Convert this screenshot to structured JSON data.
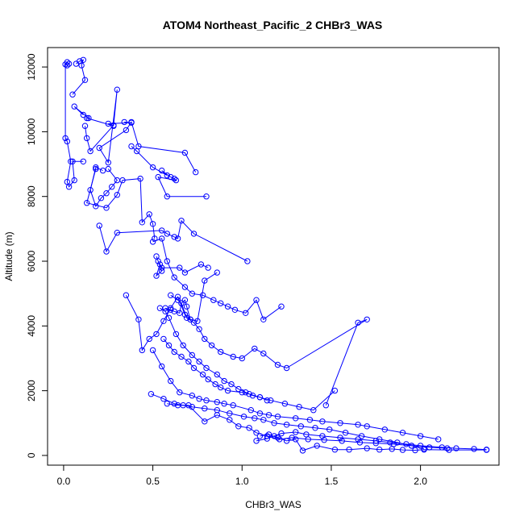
{
  "chart_data": {
    "type": "line",
    "title": "ATOM4 Northeast_Pacific_2 CHBr3_WAS",
    "xlabel": "CHBr3_WAS",
    "ylabel": "Altitude (m)",
    "xlim": [
      -0.09,
      2.44
    ],
    "ylim": [
      -300,
      12600
    ],
    "x_ticks": [
      0.0,
      0.5,
      1.0,
      1.5,
      2.0
    ],
    "x_tick_labels": [
      "0.0",
      "0.5",
      "1.0",
      "1.5",
      "2.0"
    ],
    "y_ticks": [
      0,
      2000,
      4000,
      6000,
      8000,
      10000,
      12000
    ],
    "y_tick_labels": [
      "0",
      "2000",
      "4000",
      "6000",
      "8000",
      "10000",
      "12000"
    ],
    "grid": false,
    "series_color": "#0000ff",
    "marker": "open-circle",
    "series": [
      {
        "x": [
          0.02,
          0.03,
          0.02,
          0.01,
          0.01,
          0.02,
          0.04,
          0.02,
          0.03,
          0.06,
          0.05,
          0.11
        ],
        "y": [
          12050,
          12100,
          12150,
          12080,
          9800,
          9700,
          9080,
          8450,
          8300,
          8500,
          9080,
          9080
        ]
      },
      {
        "x": [
          0.07,
          0.09,
          0.11,
          0.1,
          0.12,
          0.05
        ],
        "y": [
          12100,
          12180,
          12220,
          12050,
          11600,
          11150
        ]
      },
      {
        "x": [
          0.11,
          0.06,
          0.14,
          0.13,
          0.28,
          0.25,
          0.38,
          0.34
        ],
        "y": [
          10520,
          10780,
          10420,
          10420,
          10180,
          10250,
          10280,
          10300
        ]
      },
      {
        "x": [
          0.12,
          0.13,
          0.15,
          0.28,
          0.3,
          0.25,
          0.2,
          0.35,
          0.38,
          0.42,
          0.68,
          0.74
        ],
        "y": [
          10180,
          9800,
          9400,
          10200,
          11300,
          9050,
          9500,
          10050,
          10300,
          9550,
          9350,
          8750
        ]
      },
      {
        "x": [
          0.38,
          0.41,
          0.5,
          0.58,
          0.55,
          0.6,
          0.62,
          0.63,
          0.53,
          0.58,
          0.8
        ],
        "y": [
          9550,
          9400,
          8900,
          8650,
          8800,
          8600,
          8550,
          8500,
          8600,
          8000,
          8000
        ]
      },
      {
        "x": [
          0.22,
          0.18,
          0.15,
          0.18,
          0.21,
          0.24,
          0.27,
          0.3,
          0.25
        ],
        "y": [
          8800,
          8900,
          8200,
          7700,
          7950,
          8100,
          8300,
          8500,
          8850
        ]
      },
      {
        "x": [
          0.18,
          0.13,
          0.24,
          0.3,
          0.33,
          0.43,
          0.44,
          0.48,
          0.5,
          0.51
        ],
        "y": [
          8850,
          7800,
          7650,
          8050,
          8500,
          8550,
          7200,
          7450,
          7150,
          6700
        ]
      },
      {
        "x": [
          0.2,
          0.24,
          0.3,
          0.55,
          0.58,
          0.62,
          0.64,
          0.66,
          0.73,
          1.03
        ],
        "y": [
          7100,
          6300,
          6880,
          6950,
          6850,
          6750,
          6700,
          7250,
          6850,
          6000
        ]
      },
      {
        "x": [
          0.52,
          0.53,
          0.55,
          0.52,
          0.54,
          0.55,
          0.65,
          0.68,
          0.77,
          0.81
        ],
        "y": [
          6150,
          6000,
          5700,
          5550,
          5900,
          5800,
          5800,
          5650,
          5900,
          5800
        ]
      },
      {
        "x": [
          0.35,
          0.42,
          0.44,
          0.48,
          0.52,
          0.56,
          0.6,
          0.64,
          0.68,
          0.71
        ],
        "y": [
          4950,
          4200,
          3250,
          3600,
          3750,
          4150,
          4550,
          4900,
          4350,
          4200
        ]
      },
      {
        "x": [
          0.57,
          0.6,
          0.62,
          0.65,
          0.66,
          0.68,
          0.69,
          0.71,
          0.75,
          0.79,
          0.86
        ],
        "y": [
          4550,
          4500,
          4450,
          4400,
          4700,
          4800,
          4600,
          4200,
          4150,
          5400,
          5650
        ]
      },
      {
        "x": [
          0.5,
          0.55,
          0.58,
          0.62,
          0.68,
          0.72,
          0.78,
          0.84,
          0.88,
          0.92,
          0.96,
          1.02,
          1.08,
          1.12,
          1.22
        ],
        "y": [
          6600,
          6700,
          6000,
          5500,
          5200,
          5000,
          4950,
          4800,
          4700,
          4600,
          4500,
          4400,
          4800,
          4200,
          4600
        ]
      },
      {
        "x": [
          0.6,
          0.64,
          0.66,
          0.69,
          0.73,
          0.76,
          0.79,
          0.83,
          0.88,
          0.95,
          1.0,
          1.07,
          1.12,
          1.2,
          1.25,
          1.7,
          1.65,
          1.47
        ],
        "y": [
          4950,
          4800,
          4700,
          4250,
          4100,
          3900,
          3600,
          3400,
          3200,
          3050,
          3000,
          3300,
          3150,
          2800,
          2700,
          4200,
          4100,
          1550
        ]
      },
      {
        "x": [
          0.54,
          0.57,
          0.59,
          0.63,
          0.67,
          0.72,
          0.76,
          0.8,
          0.86,
          0.9,
          0.94,
          0.98,
          1.02,
          1.06,
          1.1,
          1.14
        ],
        "y": [
          4550,
          4450,
          4250,
          3750,
          3400,
          3100,
          2900,
          2700,
          2500,
          2300,
          2200,
          2050,
          1950,
          1850,
          1800,
          1700
        ]
      },
      {
        "x": [
          0.56,
          0.59,
          0.62,
          0.66,
          0.7,
          0.73,
          0.78,
          0.81,
          0.85,
          0.88,
          0.92,
          1.0,
          1.04,
          1.1,
          1.16,
          1.24,
          1.32,
          1.4,
          1.52
        ],
        "y": [
          3600,
          3400,
          3200,
          3050,
          2900,
          2700,
          2500,
          2350,
          2200,
          2100,
          2000,
          1950,
          1900,
          1800,
          1700,
          1600,
          1500,
          1400,
          2000
        ]
      },
      {
        "x": [
          0.5,
          0.55,
          0.6,
          0.65,
          0.72,
          0.76,
          0.8,
          0.86,
          0.9,
          0.95,
          1.05,
          1.1,
          1.15,
          1.2,
          1.3,
          1.38,
          1.45,
          1.55,
          1.65,
          1.7,
          1.8,
          1.9,
          2.0,
          2.1
        ],
        "y": [
          3250,
          2750,
          2300,
          1950,
          1850,
          1750,
          1700,
          1650,
          1600,
          1550,
          1400,
          1300,
          1250,
          1200,
          1150,
          1100,
          1050,
          1000,
          950,
          900,
          800,
          700,
          600,
          500
        ]
      },
      {
        "x": [
          0.49,
          0.56,
          0.62,
          0.67,
          0.72,
          0.79,
          0.86,
          0.93,
          1.01,
          1.07,
          1.12,
          1.18,
          1.25,
          1.33,
          1.41,
          1.49,
          1.58,
          1.67,
          1.77,
          1.87,
          1.95,
          2.02
        ],
        "y": [
          1900,
          1750,
          1600,
          1550,
          1500,
          1450,
          1400,
          1300,
          1200,
          1150,
          1100,
          1000,
          950,
          900,
          850,
          800,
          700,
          600,
          500,
          400,
          300,
          200
        ]
      },
      {
        "x": [
          0.58,
          0.64,
          0.7,
          0.79,
          0.86,
          0.93,
          0.98,
          1.04,
          1.08,
          1.14,
          1.21,
          1.28,
          1.37,
          1.46,
          1.56,
          1.66,
          1.75,
          1.85,
          1.95,
          2.05,
          2.15
        ],
        "y": [
          1600,
          1550,
          1550,
          1050,
          1250,
          1100,
          900,
          850,
          700,
          600,
          500,
          550,
          500,
          480,
          450,
          400,
          380,
          350,
          300,
          250,
          220
        ]
      },
      {
        "x": [
          1.08,
          1.14,
          1.18,
          1.22,
          1.3,
          1.36,
          1.45,
          1.55,
          1.65,
          1.75,
          1.83,
          1.92,
          2.0,
          2.12,
          2.2,
          2.3,
          2.37
        ],
        "y": [
          450,
          520,
          600,
          680,
          720,
          650,
          600,
          550,
          500,
          450,
          400,
          350,
          300,
          250,
          220,
          200,
          180
        ]
      },
      {
        "x": [
          1.1,
          1.15,
          1.2,
          1.25,
          1.3,
          1.34,
          1.42,
          1.52,
          1.6,
          1.7,
          1.77,
          1.84,
          1.9,
          1.97,
          2.02,
          2.16,
          2.37
        ],
        "y": [
          600,
          650,
          550,
          450,
          500,
          150,
          300,
          180,
          180,
          220,
          180,
          200,
          170,
          160,
          180,
          170,
          170
        ]
      }
    ]
  }
}
